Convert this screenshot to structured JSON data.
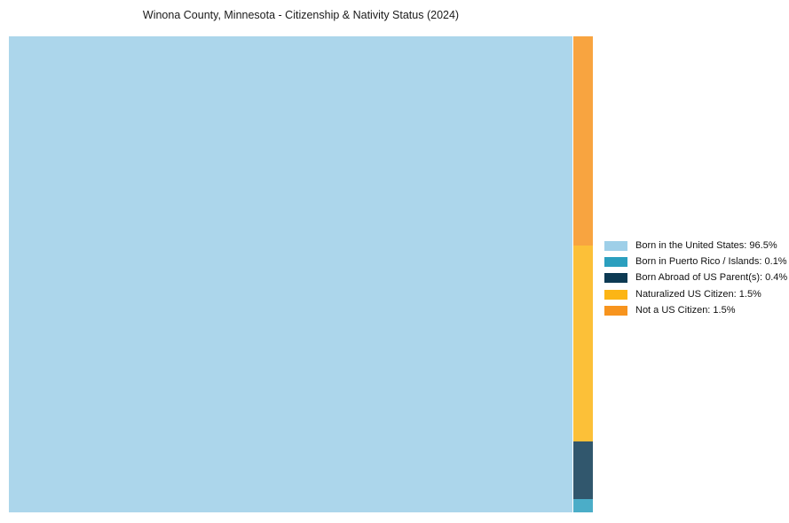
{
  "page": {
    "background": "#ffffff"
  },
  "chart_data": {
    "type": "treemap",
    "title": "Winona County, Minnesota - Citizenship & Nativity Status (2024)",
    "items": [
      {
        "label": "Born in the United States",
        "value_pct": 96.5,
        "color": "#9ecfe8"
      },
      {
        "label": "Born in Puerto Rico / Islands",
        "value_pct": 0.1,
        "color": "#2b9fbe"
      },
      {
        "label": "Born Abroad of US Parent(s)",
        "value_pct": 0.4,
        "color": "#0d3a53"
      },
      {
        "label": "Naturalized US Citizen",
        "value_pct": 1.5,
        "color": "#fcb515"
      },
      {
        "label": "Not a US Citizen",
        "value_pct": 1.5,
        "color": "#f7941e"
      }
    ],
    "layout": {
      "legend_position": "right",
      "grid": false,
      "fill_opacity": 0.85,
      "main_item_index": 0,
      "column_order": [
        4,
        3,
        2,
        1
      ],
      "column_fractions": [
        0.4402,
        0.4103,
        0.1207,
        0.0288
      ]
    }
  }
}
